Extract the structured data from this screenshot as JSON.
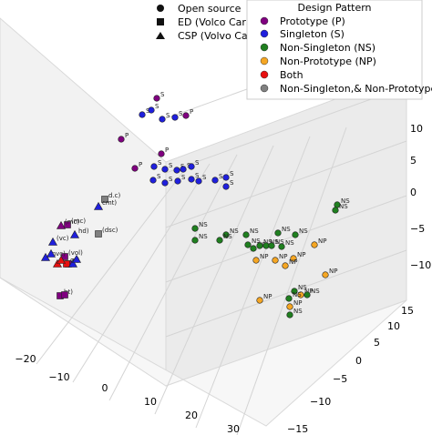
{
  "chart_data": {
    "type": "scatter",
    "projection": "3d",
    "title": "",
    "xlabel": "",
    "ylabel": "",
    "zlabel": "",
    "grid": true,
    "x_ticks": [
      "−20",
      "−10",
      "0",
      "10",
      "20",
      "30"
    ],
    "y_ticks": [
      "−15",
      "−10",
      "−5",
      "0",
      "5",
      "10",
      "15"
    ],
    "z_ticks": [
      "−10",
      "−5",
      "0",
      "5",
      "10",
      "15"
    ],
    "legend_source": {
      "placement": "top-center",
      "entries": [
        {
          "label": "Open source",
          "marker": "circle"
        },
        {
          "label": "ED (Volco Cars)",
          "marker": "square"
        },
        {
          "label": "CSP (Volvo Cars)",
          "marker": "triangle"
        }
      ]
    },
    "legend_pattern": {
      "placement": "top-right",
      "title": "Design Pattern",
      "entries": [
        {
          "label": "Prototype (P)",
          "color": "#800080"
        },
        {
          "label": "Singleton (S)",
          "color": "#1f1fdd"
        },
        {
          "label": "Non-Singleton (NS)",
          "color": "#1f7f1f"
        },
        {
          "label": "Non-Prototype (NP)",
          "color": "#f5a623"
        },
        {
          "label": "Both",
          "color": "#e81010"
        },
        {
          "label": "Non-Singleton,& Non-Prototype",
          "color": "#808080"
        }
      ]
    },
    "point_labels": {
      "P": "P",
      "S": "S",
      "NS": "NS",
      "NP": "NP",
      "mc": "(mc)",
      "vc": "(vc)",
      "cmt": "cmt)",
      "dic": "d.c)",
      "dsc": "(dsc)",
      "hd": "hd)",
      "vol": "(vol)",
      "rt": "rt)",
      "ot": "ot)",
      "bt": "bt)",
      "nvc": "(nvc)"
    }
  }
}
